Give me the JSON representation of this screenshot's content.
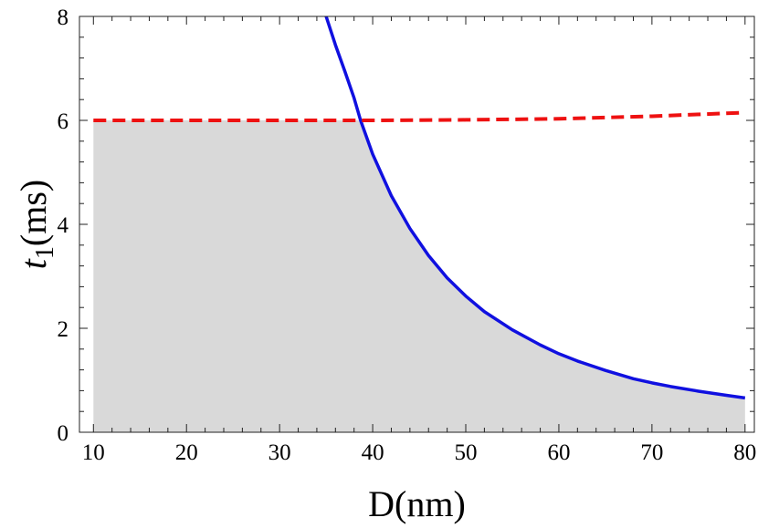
{
  "chart_data": {
    "type": "line",
    "xlabel": "D(nm)",
    "ylabel": {
      "var": "t",
      "sub": "1",
      "unit": "(ms)"
    },
    "xlim": [
      8.5,
      81
    ],
    "ylim": [
      0,
      8
    ],
    "x_ticks": [
      10,
      20,
      30,
      40,
      50,
      60,
      70,
      80
    ],
    "y_ticks": [
      0,
      2,
      4,
      6,
      8
    ],
    "grid": false,
    "legend": "none",
    "series": [
      {
        "style": "solid",
        "color": "#1010e0",
        "x": [
          35,
          36,
          37,
          38,
          38.7,
          40,
          42,
          44,
          46,
          48,
          50,
          52,
          55,
          58,
          60,
          62,
          65,
          68,
          70,
          72,
          75,
          78,
          80
        ],
        "y": [
          8.0,
          7.45,
          6.95,
          6.43,
          6.0,
          5.35,
          4.55,
          3.92,
          3.4,
          2.97,
          2.62,
          2.32,
          1.97,
          1.68,
          1.51,
          1.37,
          1.19,
          1.03,
          0.95,
          0.88,
          0.79,
          0.71,
          0.66
        ]
      },
      {
        "style": "dashed",
        "color": "#ee1111",
        "x": [
          10,
          20,
          30,
          40,
          50,
          60,
          70,
          80
        ],
        "y": [
          6.0,
          6.0,
          6.0,
          6.0,
          6.01,
          6.03,
          6.08,
          6.15
        ]
      }
    ],
    "shaded_region": {
      "color": "#d9d9d9",
      "x": [
        10,
        38.7,
        40,
        42,
        44,
        46,
        48,
        50,
        52,
        55,
        58,
        60,
        62,
        65,
        68,
        70,
        72,
        75,
        78,
        80
      ],
      "upper": [
        6.0,
        6.0,
        5.35,
        4.55,
        3.92,
        3.4,
        2.97,
        2.62,
        2.32,
        1.97,
        1.68,
        1.51,
        1.37,
        1.19,
        1.03,
        0.95,
        0.88,
        0.79,
        0.71,
        0.66
      ]
    }
  }
}
